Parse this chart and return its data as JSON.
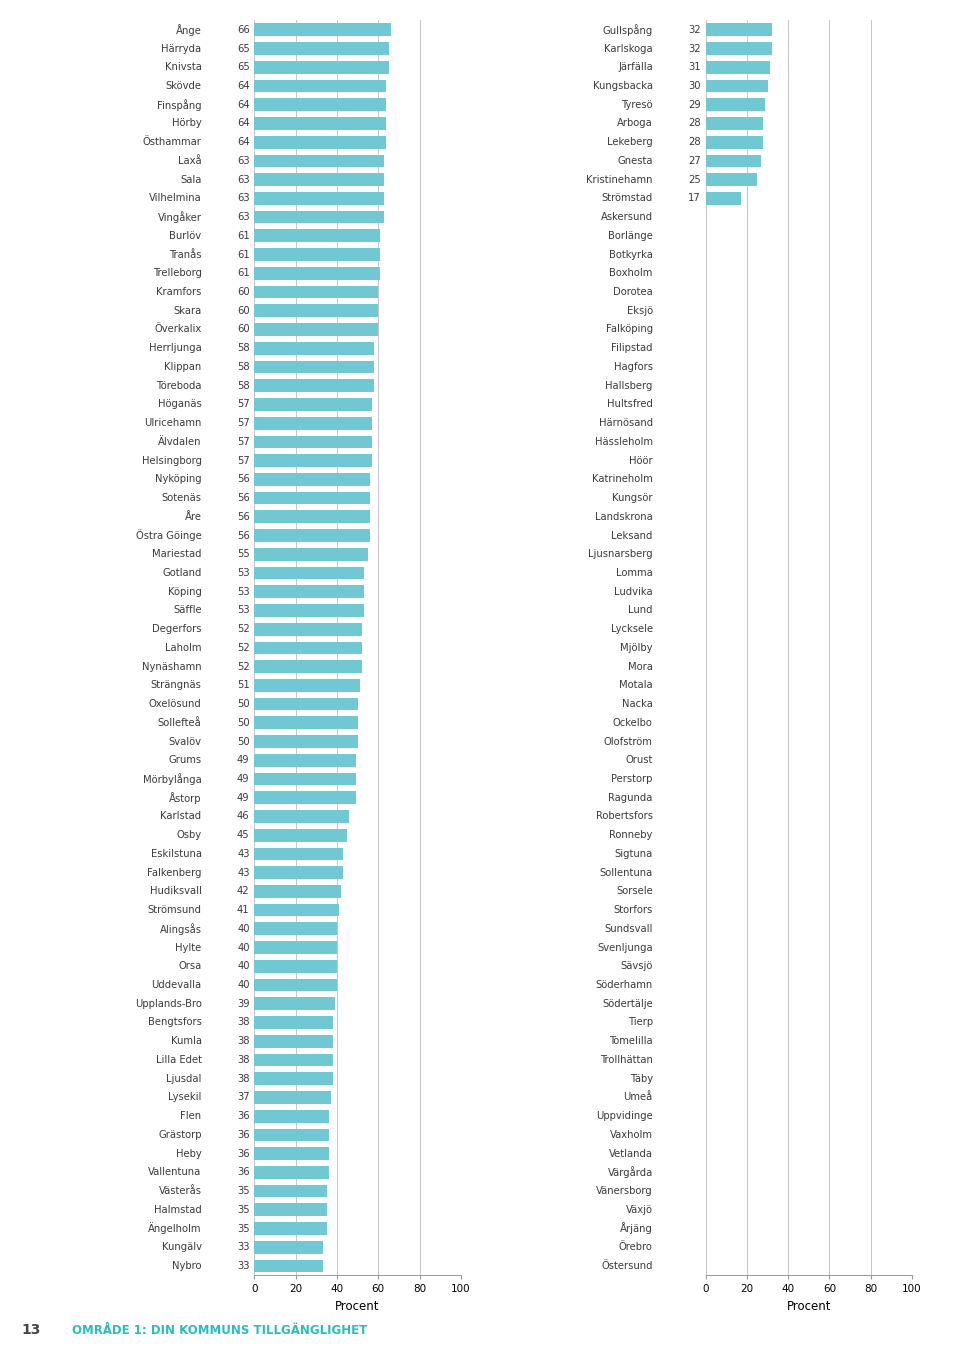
{
  "left_data": [
    [
      "Ånge",
      66
    ],
    [
      "Härryda",
      65
    ],
    [
      "Knivsta",
      65
    ],
    [
      "Skövde",
      64
    ],
    [
      "Finspång",
      64
    ],
    [
      "Hörby",
      64
    ],
    [
      "Östhammar",
      64
    ],
    [
      "Laxå",
      63
    ],
    [
      "Sala",
      63
    ],
    [
      "Vilhelmina",
      63
    ],
    [
      "Vingåker",
      63
    ],
    [
      "Burlöv",
      61
    ],
    [
      "Tranås",
      61
    ],
    [
      "Trelleborg",
      61
    ],
    [
      "Kramfors",
      60
    ],
    [
      "Skara",
      60
    ],
    [
      "Överkalix",
      60
    ],
    [
      "Herrljunga",
      58
    ],
    [
      "Klippan",
      58
    ],
    [
      "Töreboda",
      58
    ],
    [
      "Höganäs",
      57
    ],
    [
      "Ulricehamn",
      57
    ],
    [
      "Älvdalen",
      57
    ],
    [
      "Helsingborg",
      57
    ],
    [
      "Nyköping",
      56
    ],
    [
      "Sotenäs",
      56
    ],
    [
      "Åre",
      56
    ],
    [
      "Östra Göinge",
      56
    ],
    [
      "Mariestad",
      55
    ],
    [
      "Gotland",
      53
    ],
    [
      "Köping",
      53
    ],
    [
      "Säffle",
      53
    ],
    [
      "Degerfors",
      52
    ],
    [
      "Laholm",
      52
    ],
    [
      "Nynäshamn",
      52
    ],
    [
      "Strängnäs",
      51
    ],
    [
      "Oxelösund",
      50
    ],
    [
      "Sollefteå",
      50
    ],
    [
      "Svalöv",
      50
    ],
    [
      "Grums",
      49
    ],
    [
      "Mörbylånga",
      49
    ],
    [
      "Åstorp",
      49
    ],
    [
      "Karlstad",
      46
    ],
    [
      "Osby",
      45
    ],
    [
      "Eskilstuna",
      43
    ],
    [
      "Falkenberg",
      43
    ],
    [
      "Hudiksvall",
      42
    ],
    [
      "Strömsund",
      41
    ],
    [
      "Alingsås",
      40
    ],
    [
      "Hylte",
      40
    ],
    [
      "Orsa",
      40
    ],
    [
      "Uddevalla",
      40
    ],
    [
      "Upplands-Bro",
      39
    ],
    [
      "Bengtsfors",
      38
    ],
    [
      "Kumla",
      38
    ],
    [
      "Lilla Edet",
      38
    ],
    [
      "Ljusdal",
      38
    ],
    [
      "Lysekil",
      37
    ],
    [
      "Flen",
      36
    ],
    [
      "Grästorp",
      36
    ],
    [
      "Heby",
      36
    ],
    [
      "Vallentuna",
      36
    ],
    [
      "Västerås",
      35
    ],
    [
      "Halmstad",
      35
    ],
    [
      "Ängelholm",
      35
    ],
    [
      "Kungälv",
      33
    ],
    [
      "Nybro",
      33
    ]
  ],
  "right_data": [
    [
      "Gullspång",
      32
    ],
    [
      "Karlskoga",
      32
    ],
    [
      "Järfälla",
      31
    ],
    [
      "Kungsbacka",
      30
    ],
    [
      "Tyresö",
      29
    ],
    [
      "Arboga",
      28
    ],
    [
      "Lekeberg",
      28
    ],
    [
      "Gnesta",
      27
    ],
    [
      "Kristinehamn",
      25
    ],
    [
      "Strömstad",
      17
    ],
    [
      "Askersund",
      null
    ],
    [
      "Borlänge",
      null
    ],
    [
      "Botkyrka",
      null
    ],
    [
      "Boxholm",
      null
    ],
    [
      "Dorotea",
      null
    ],
    [
      "Eksjö",
      null
    ],
    [
      "Falköping",
      null
    ],
    [
      "Filipstad",
      null
    ],
    [
      "Hagfors",
      null
    ],
    [
      "Hallsberg",
      null
    ],
    [
      "Hultsfred",
      null
    ],
    [
      "Härnösand",
      null
    ],
    [
      "Hässleholm",
      null
    ],
    [
      "Höör",
      null
    ],
    [
      "Katrineholm",
      null
    ],
    [
      "Kungsör",
      null
    ],
    [
      "Landskrona",
      null
    ],
    [
      "Leksand",
      null
    ],
    [
      "Ljusnarsberg",
      null
    ],
    [
      "Lomma",
      null
    ],
    [
      "Ludvika",
      null
    ],
    [
      "Lund",
      null
    ],
    [
      "Lycksele",
      null
    ],
    [
      "Mjölby",
      null
    ],
    [
      "Mora",
      null
    ],
    [
      "Motala",
      null
    ],
    [
      "Nacka",
      null
    ],
    [
      "Ockelbo",
      null
    ],
    [
      "Olofström",
      null
    ],
    [
      "Orust",
      null
    ],
    [
      "Perstorp",
      null
    ],
    [
      "Ragunda",
      null
    ],
    [
      "Robertsfors",
      null
    ],
    [
      "Ronneby",
      null
    ],
    [
      "Sigtuna",
      null
    ],
    [
      "Sollentuna",
      null
    ],
    [
      "Sorsele",
      null
    ],
    [
      "Storfors",
      null
    ],
    [
      "Sundsvall",
      null
    ],
    [
      "Svenljunga",
      null
    ],
    [
      "Sävsjö",
      null
    ],
    [
      "Söderhamn",
      null
    ],
    [
      "Södertälje",
      null
    ],
    [
      "Tierp",
      null
    ],
    [
      "Tomelilla",
      null
    ],
    [
      "Trollhättan",
      null
    ],
    [
      "Täby",
      null
    ],
    [
      "Umeå",
      null
    ],
    [
      "Uppvidinge",
      null
    ],
    [
      "Vaxholm",
      null
    ],
    [
      "Vetlanda",
      null
    ],
    [
      "Värgårda",
      null
    ],
    [
      "Vänersborg",
      null
    ],
    [
      "Växjö",
      null
    ],
    [
      "Årjäng",
      null
    ],
    [
      "Örebro",
      null
    ],
    [
      "Östersund",
      null
    ]
  ],
  "bar_color": "#72C8D2",
  "xlim": [
    0,
    100
  ],
  "xticks": [
    0,
    20,
    40,
    60,
    80,
    100
  ],
  "xlabel": "Procent",
  "title": "OMRÅDE 1: DIN KOMMUNS TILLGÄNGLIGHET",
  "page_number": "13",
  "title_color": "#2BBCBB",
  "background_color": "#ffffff",
  "label_color": "#3a3a3a",
  "value_color": "#3a3a3a",
  "grid_color": "#bbbbbb",
  "spine_color": "#999999",
  "bar_height": 0.68,
  "name_fontsize": 7.2,
  "value_fontsize": 7.2,
  "tick_fontsize": 7.5
}
